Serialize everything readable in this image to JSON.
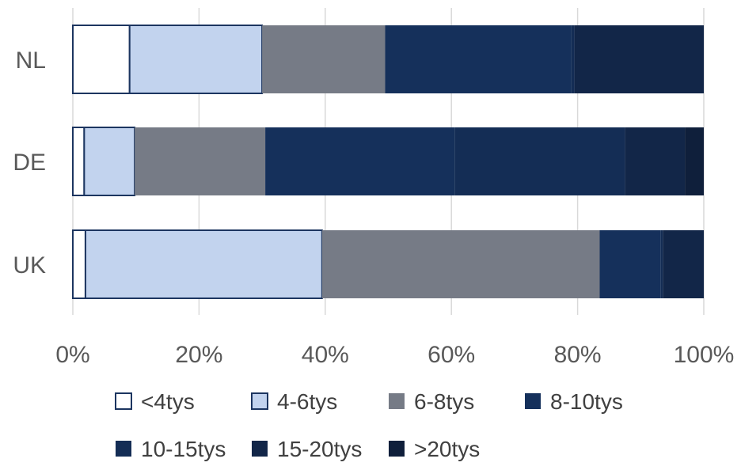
{
  "chart_data": {
    "type": "bar",
    "orientation": "horizontal",
    "stacked": "percent",
    "categories": [
      "NL",
      "DE",
      "UK"
    ],
    "x_ticks": [
      "0%",
      "20%",
      "40%",
      "60%",
      "80%",
      "100%"
    ],
    "xlim": [
      0,
      100
    ],
    "grid": "vertical",
    "legend_position": "bottom",
    "series": [
      {
        "name": "<4tys",
        "values": [
          9,
          1.8,
          2
        ],
        "color": "#ffffff",
        "outline": true
      },
      {
        "name": "4-6tys",
        "values": [
          21,
          8,
          37.5
        ],
        "color": "#c2d3ee",
        "outline": true
      },
      {
        "name": "6-8tys",
        "values": [
          19.5,
          20.7,
          44
        ],
        "color": "#767b86",
        "outline": false
      },
      {
        "name": "8-10tys",
        "values": [
          29.5,
          30,
          9.7
        ],
        "color": "#15305b",
        "outline": false
      },
      {
        "name": "10-15tys",
        "values": [
          0.5,
          27,
          0.3
        ],
        "color": "#142d55",
        "outline": false
      },
      {
        "name": "15-20tys",
        "values": [
          20.5,
          9.5,
          6.5
        ],
        "color": "#122648",
        "outline": false
      },
      {
        "name": ">20tys",
        "values": [
          0,
          3,
          0
        ],
        "color": "#0f1f3b",
        "outline": false
      }
    ],
    "colors": {
      "outline": "#1c3560",
      "grid": "#d9d9d9",
      "text": "#595959"
    }
  }
}
